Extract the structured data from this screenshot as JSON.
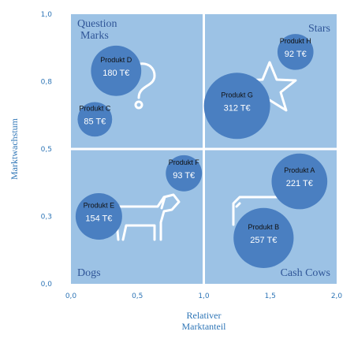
{
  "chart_data": {
    "type": "scatter",
    "subtype": "bubble",
    "title": "",
    "xlabel": [
      "Relativer",
      "Marktanteil"
    ],
    "ylabel": "Marktwachstum",
    "xlim": [
      0,
      2
    ],
    "ylim": [
      0,
      1
    ],
    "x_ticks": [
      "0,0",
      "0,5",
      "1,0",
      "1,5",
      "2,0"
    ],
    "x_tick_values": [
      0,
      0.5,
      1,
      1.5,
      2
    ],
    "y_ticks": [
      "0,0",
      "0,3",
      "0,5",
      "0,8",
      "1,0"
    ],
    "y_tick_values": [
      0,
      0.25,
      0.5,
      0.75,
      1
    ],
    "grid": false,
    "quadrants": [
      {
        "label": [
          "Question",
          "Marks"
        ],
        "position": "top-left"
      },
      {
        "label": [
          "Stars"
        ],
        "position": "top-right"
      },
      {
        "label": [
          "Dogs"
        ],
        "position": "bottom-left"
      },
      {
        "label": [
          "Cash Cows"
        ],
        "position": "bottom-right"
      }
    ],
    "points": [
      {
        "name": "Produkt A",
        "x": 1.72,
        "y": 0.38,
        "value": 221,
        "label": "221 T€"
      },
      {
        "name": "Produkt B",
        "x": 1.45,
        "y": 0.17,
        "value": 257,
        "label": "257 T€"
      },
      {
        "name": "Produkt C",
        "x": 0.18,
        "y": 0.61,
        "value": 85,
        "label": "85 T€"
      },
      {
        "name": "Produkt D",
        "x": 0.34,
        "y": 0.79,
        "value": 180,
        "label": "180 T€"
      },
      {
        "name": "Produkt E",
        "x": 0.21,
        "y": 0.25,
        "value": 154,
        "label": "154 T€"
      },
      {
        "name": "Produkt F",
        "x": 0.85,
        "y": 0.41,
        "value": 93,
        "label": "93 T€"
      },
      {
        "name": "Produkt G",
        "x": 1.25,
        "y": 0.66,
        "value": 312,
        "label": "312 T€"
      },
      {
        "name": "Produkt H",
        "x": 1.69,
        "y": 0.86,
        "value": 92,
        "label": "92 T€"
      }
    ],
    "colors": {
      "quadrant_bg": "#9cc2e5",
      "bubble": "#4a7fc1",
      "divider": "#ffffff",
      "axis_text": "#2e75b6",
      "quadrant_text": "#2f5597"
    },
    "icons": [
      "question-mark-icon",
      "star-icon",
      "dog-icon",
      "cow-icon"
    ]
  }
}
